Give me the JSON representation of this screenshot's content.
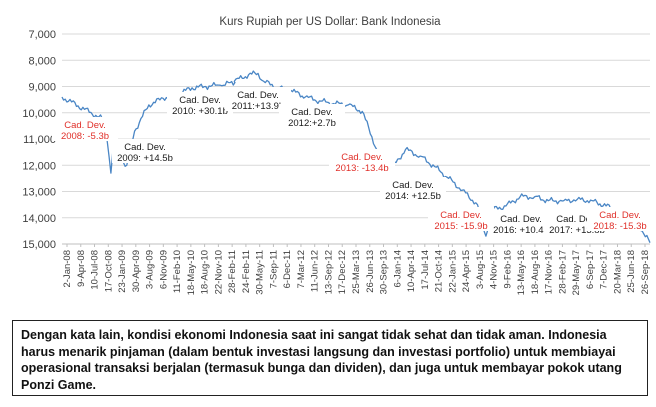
{
  "chart_data": {
    "type": "line",
    "title": "Kurs Rupiah per US Dollar: Bank Indonesia",
    "xlabel": "",
    "ylabel": "",
    "y_inverted": true,
    "ylim": [
      7000,
      15000
    ],
    "yticks": [
      "7,000",
      "8,000",
      "9,000",
      "10,000",
      "11,000",
      "12,000",
      "13,000",
      "14,000",
      "15,000"
    ],
    "xticks": [
      "2-Jan-08",
      "9-Apr-08",
      "10-Jul-08",
      "17-Oct-08",
      "23-Jan-09",
      "30-Apr-09",
      "3-Aug-09",
      "6-Nov-09",
      "11-Feb-10",
      "18-May-10",
      "18-Aug-10",
      "22-Nov-10",
      "28-Feb-11",
      "24-Feb-11",
      "30-May-11",
      "7-Sep-11",
      "6-Dec-11",
      "7-Mar-12",
      "11-Jun-12",
      "13-Sep-12",
      "17-Dec-12",
      "25-Mar-13",
      "26-Jun-13",
      "30-Sep-13",
      "6-Jan-14",
      "10-Apr-14",
      "17-Jul-14",
      "21-Oct-14",
      "22-Jan-15",
      "24-Apr-15",
      "3-Aug-15",
      "4-Nov-15",
      "9-Feb-16",
      "13-May-16",
      "18-Aug-16",
      "17-Nov-16",
      "28-Feb-17",
      "29-May-17",
      "6-Sep-17",
      "7-Dec-17",
      "20-Mar-18",
      "25-Jun-18",
      "26-Sep-18"
    ],
    "grid": true,
    "legend": "none",
    "line_color": "#4a86c5",
    "series": [
      {
        "name": "",
        "x": [
          "2-Jan-08",
          "17-Oct-08",
          "23-Nov-08",
          "12-Dec-08",
          "23-Jan-09",
          "15-Feb-09",
          "9-Mar-09",
          "30-Apr-09",
          "3-Aug-09",
          "6-Nov-09",
          "11-Feb-10",
          "18-May-10",
          "18-Aug-10",
          "22-Nov-10",
          "28-Feb-11",
          "24-Feb-11",
          "30-May-11",
          "1-Aug-11",
          "7-Sep-11",
          "6-Dec-11",
          "7-Mar-12",
          "11-Jun-12",
          "13-Sep-12",
          "17-Dec-12",
          "25-Mar-13",
          "26-Jun-13",
          "30-Sep-13",
          "5-Dec-13",
          "6-Jan-14",
          "10-Apr-14",
          "17-Jul-14",
          "21-Oct-14",
          "22-Jan-15",
          "24-Apr-15",
          "3-Aug-15",
          "28-Sep-15",
          "4-Nov-15",
          "9-Feb-16",
          "13-May-16",
          "18-Aug-16",
          "17-Nov-16",
          "28-Feb-17",
          "29-May-17",
          "6-Sep-17",
          "7-Dec-17",
          "20-Mar-18",
          "25-Jun-18",
          "26-Sep-18"
        ],
        "values": [
          9400,
          10300,
          12300,
          11000,
          11400,
          11900,
          12000,
          10700,
          9700,
          9450,
          9300,
          9050,
          9000,
          8950,
          8850,
          8800,
          8550,
          8500,
          8800,
          9050,
          9150,
          9400,
          9550,
          9650,
          9700,
          9950,
          11400,
          12150,
          12150,
          11400,
          11650,
          12050,
          12500,
          12950,
          13500,
          14700,
          13700,
          13550,
          13200,
          13200,
          13350,
          13350,
          13300,
          13350,
          13550,
          13750,
          14100,
          14950
        ]
      }
    ],
    "annotations": [
      {
        "lines": [
          "Cad. Dev.",
          "2008: -5.3b"
        ],
        "color": "red"
      },
      {
        "lines": [
          "Cad. Dev.",
          "2009: +14.5b"
        ],
        "color": "black"
      },
      {
        "lines": [
          "Cad. Dev.",
          "2010: +30.1b"
        ],
        "color": "black"
      },
      {
        "lines": [
          "Cad. Dev.",
          "2011:+13.9b"
        ],
        "color": "black"
      },
      {
        "lines": [
          "Cad. Dev.",
          "2012:+2.7b"
        ],
        "color": "black"
      },
      {
        "lines": [
          "Cad. Dev.",
          "2013: -13.4b"
        ],
        "color": "red"
      },
      {
        "lines": [
          "Cad. Dev.",
          "2014: +12.5b"
        ],
        "color": "black"
      },
      {
        "lines": [
          "Cad. Dev.",
          "2015: -15.9b"
        ],
        "color": "red"
      },
      {
        "lines": [
          "Cad. Dev.",
          "2016: +10.4b"
        ],
        "color": "black"
      },
      {
        "lines": [
          "Cad. Dev.",
          "2017: +13.8b"
        ],
        "color": "black"
      },
      {
        "lines": [
          "Cad. Dev.",
          "2018: -15.3b"
        ],
        "color": "red"
      }
    ]
  },
  "caption": {
    "lines": [
      "Dengan kata lain, kondisi ekonomi Indonesia saat ini sangat tidak sehat dan tidak aman. Indonesia",
      "harus menarik pinjaman (dalam bentuk investasi langsung dan investasi portfolio) untuk membiayai",
      "operasional transaksi berjalan (termasuk bunga dan dividen), dan juga untuk membayar pokok utang",
      "Ponzi Game."
    ]
  }
}
